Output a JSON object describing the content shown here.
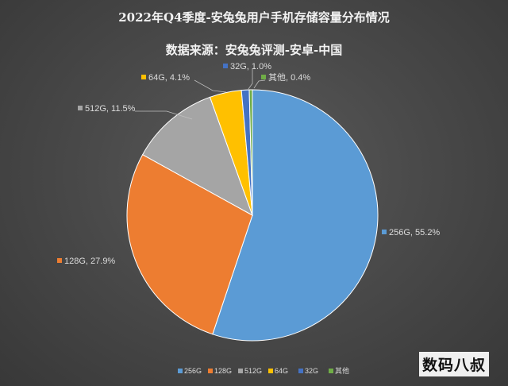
{
  "chart_data": {
    "type": "pie",
    "title": "2022年Q4季度-安兔兔用户手机存储容量分布情况",
    "subtitle": "数据来源：安兔兔评测-安卓-中国",
    "categories": [
      "256G",
      "128G",
      "512G",
      "64G",
      "32G",
      "其他"
    ],
    "values": [
      55.2,
      27.9,
      11.5,
      4.1,
      1.0,
      0.4
    ],
    "data_labels": [
      "256G, 55.2%",
      "128G, 27.9%",
      "512G, 11.5%",
      "64G, 4.1%",
      "32G, 1.0%",
      "其他, 0.4%"
    ],
    "colors": [
      "#5B9BD5",
      "#ED7D31",
      "#A5A5A5",
      "#FFC000",
      "#4472C4",
      "#70AD47"
    ],
    "legend_position": "bottom"
  },
  "watermark": "数码八叔"
}
